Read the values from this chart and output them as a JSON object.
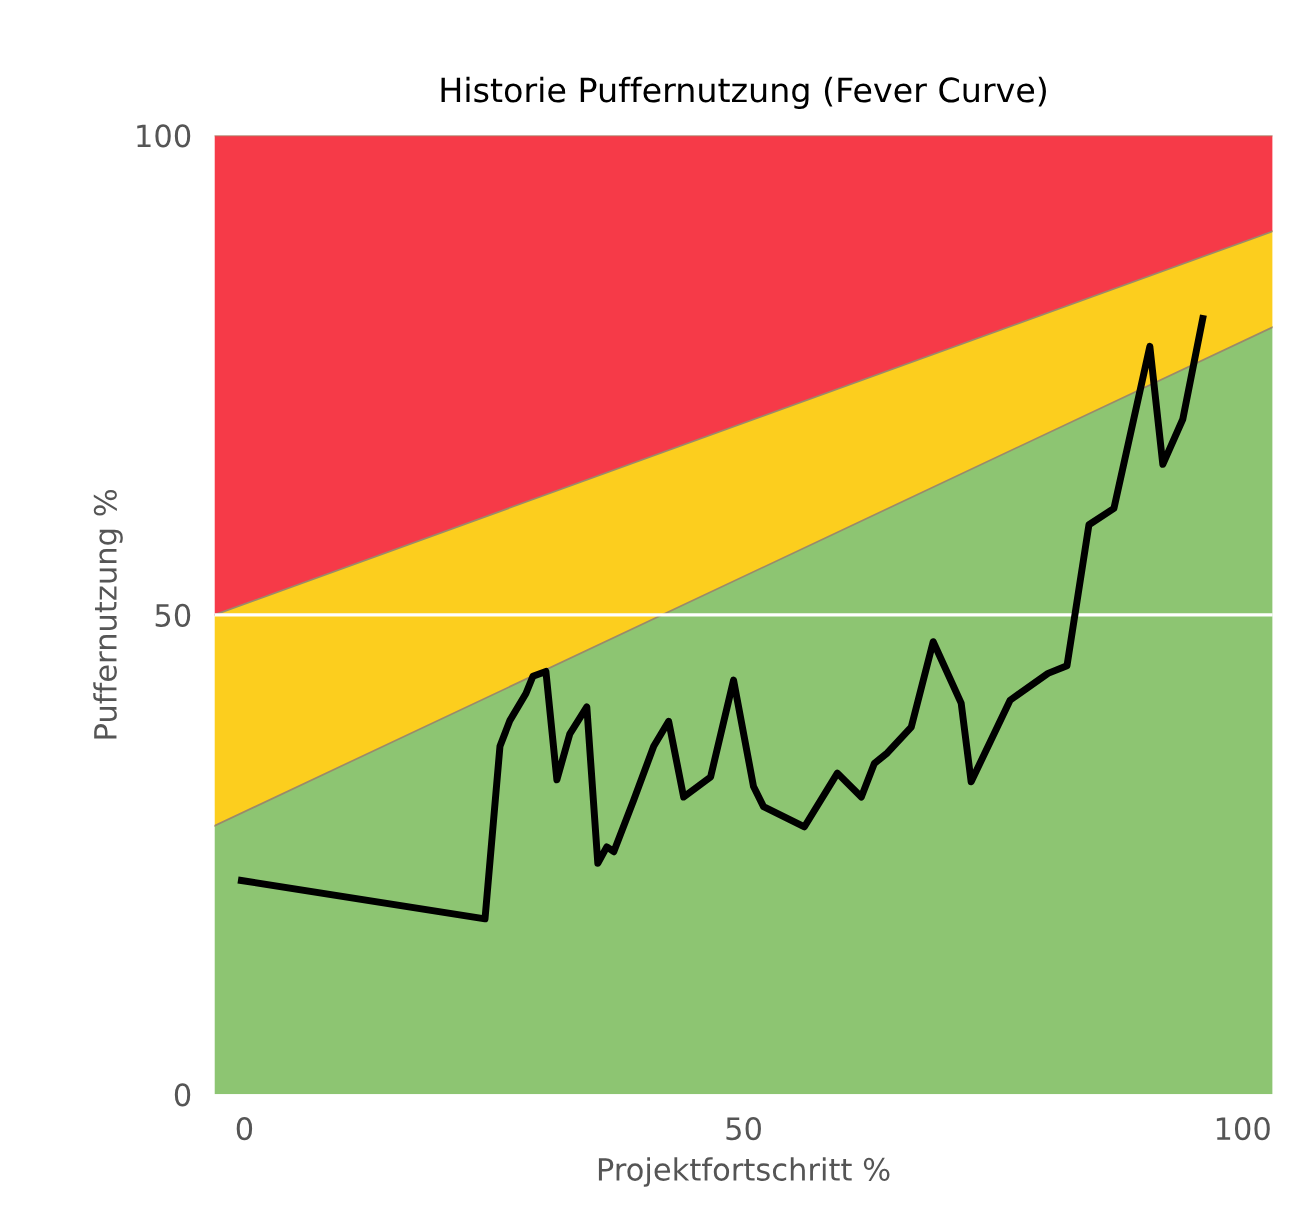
{
  "chart_data": {
    "type": "line",
    "title": "Historie Puffernutzung (Fever Curve)",
    "xlabel": "Projektfortschritt %",
    "ylabel": "Puffernutzung %",
    "xlim": [
      -3,
      103
    ],
    "ylim": [
      0,
      100
    ],
    "xticks": [
      0,
      50,
      100
    ],
    "yticks": [
      0,
      50,
      100
    ],
    "grid": false,
    "stacked": true,
    "ref_lines": [
      {
        "axis": "y",
        "value": 50,
        "color": "#ffffff"
      }
    ],
    "series": [
      {
        "type": "area",
        "color": "#8dc572",
        "x": [
          -3,
          103
        ],
        "values": [
          28,
          80
        ]
      },
      {
        "type": "area",
        "color": "#fcce1e",
        "x": [
          -3,
          103
        ],
        "values": [
          22,
          10
        ]
      },
      {
        "type": "area",
        "color": "#f63a48",
        "x": [
          -3,
          103
        ],
        "values": [
          50,
          10
        ]
      },
      {
        "color": "#000000",
        "x": [
          -0.3,
          24.1,
          25.6,
          26.6,
          28.2,
          28.9,
          30.2,
          31.3,
          32.6,
          34.3,
          35.4,
          36.3,
          37,
          39,
          41,
          42.5,
          44,
          46.7,
          49,
          51,
          52,
          56.1,
          59.4,
          61.8,
          63.1,
          64.4,
          66.8,
          69,
          71.8,
          72.8,
          76.7,
          80.5,
          82.4,
          84.6,
          87.1,
          90.7,
          92,
          94,
          96
        ],
        "values": [
          22.3,
          18.3,
          36.3,
          39,
          41.8,
          43.6,
          44.1,
          32.8,
          37.6,
          40.4,
          24.1,
          25.8,
          25.3,
          30.7,
          36.3,
          38.9,
          31,
          33.1,
          43.2,
          32.1,
          30,
          27.9,
          33.5,
          31,
          34.5,
          35.6,
          38.3,
          47.2,
          40.8,
          32.6,
          41.1,
          43.9,
          44.7,
          59.4,
          61.1,
          78,
          65.7,
          70.4,
          80.9
        ]
      }
    ]
  }
}
